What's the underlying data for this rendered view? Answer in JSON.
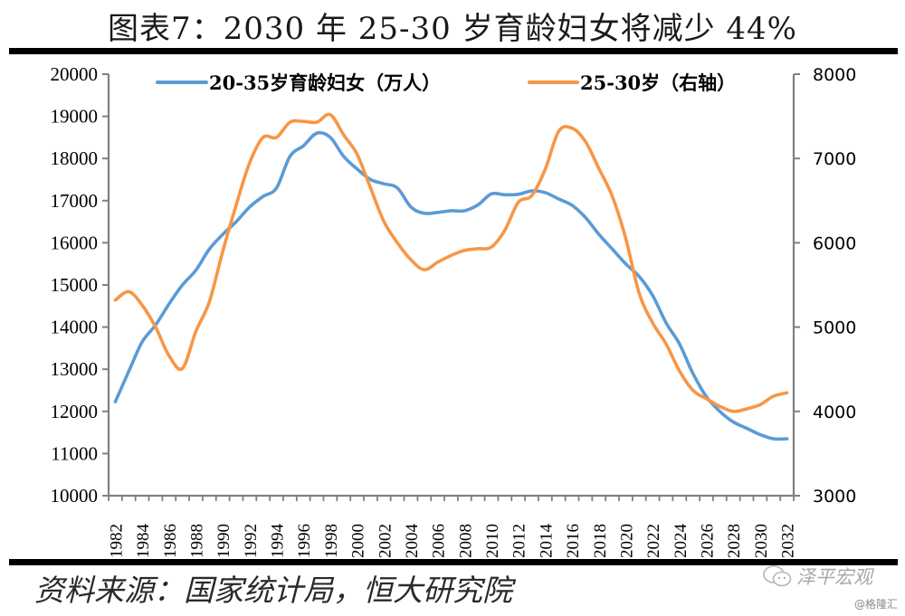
{
  "title": "图表7：2030 年 25-30 岁育龄妇女将减少 44%",
  "source": "资料来源：国家统计局，恒大研究院",
  "watermark": {
    "brand": "泽平宏观",
    "credit": "@格隆汇",
    "icon": "wechat-icon"
  },
  "colors": {
    "series1": "#5b9bd5",
    "series2": "#f79646",
    "axis": "#808080",
    "text": "#000000"
  },
  "chart_data": {
    "type": "line",
    "title": "图表7：2030 年 25-30 岁育龄妇女将减少 44%",
    "xlabel": "",
    "ylabel": "",
    "y2label": "",
    "ylim": [
      10000,
      20000
    ],
    "y2lim": [
      3000,
      8000
    ],
    "yticks": [
      "10000",
      "11000",
      "12000",
      "13000",
      "14000",
      "15000",
      "16000",
      "17000",
      "18000",
      "19000",
      "20000"
    ],
    "y2ticks": [
      "3000",
      "4000",
      "5000",
      "6000",
      "7000",
      "8000"
    ],
    "grid": false,
    "legend": "top",
    "x": [
      1982,
      1983,
      1984,
      1985,
      1986,
      1987,
      1988,
      1989,
      1990,
      1991,
      1992,
      1993,
      1994,
      1995,
      1996,
      1997,
      1998,
      1999,
      2000,
      2001,
      2002,
      2003,
      2004,
      2005,
      2006,
      2007,
      2008,
      2009,
      2010,
      2011,
      2012,
      2013,
      2014,
      2015,
      2016,
      2017,
      2018,
      2019,
      2020,
      2021,
      2022,
      2023,
      2024,
      2025,
      2026,
      2027,
      2028,
      2029,
      2030,
      2031,
      2032
    ],
    "xticklabels": [
      "1982",
      "1984",
      "1986",
      "1988",
      "1990",
      "1992",
      "1994",
      "1996",
      "1998",
      "2000",
      "2002",
      "2004",
      "2006",
      "2008",
      "2010",
      "2012",
      "2014",
      "2016",
      "2018",
      "2020",
      "2022",
      "2024",
      "2026",
      "2028",
      "2030",
      "2032"
    ],
    "series": [
      {
        "name": "20-35岁育龄妇女（万人）",
        "axis": "left",
        "values": [
          12230,
          12950,
          13650,
          14050,
          14550,
          15000,
          15350,
          15850,
          16200,
          16500,
          16850,
          17100,
          17300,
          18050,
          18300,
          18600,
          18500,
          18050,
          17750,
          17500,
          17400,
          17300,
          16850,
          16700,
          16720,
          16760,
          16760,
          16900,
          17160,
          17140,
          17150,
          17230,
          17190,
          17040,
          16890,
          16600,
          16200,
          15850,
          15500,
          15200,
          14750,
          14100,
          13600,
          12900,
          12350,
          12000,
          11750,
          11600,
          11450,
          11350,
          11350
        ]
      },
      {
        "name": "25-30岁（右轴）",
        "axis": "right",
        "values": [
          5320,
          5420,
          5260,
          5000,
          4660,
          4510,
          4950,
          5300,
          5900,
          6450,
          6950,
          7250,
          7250,
          7430,
          7440,
          7430,
          7520,
          7280,
          7050,
          6650,
          6250,
          6000,
          5800,
          5680,
          5770,
          5850,
          5910,
          5930,
          5950,
          6150,
          6480,
          6560,
          6870,
          7320,
          7360,
          7200,
          6880,
          6550,
          6050,
          5400,
          5050,
          4800,
          4480,
          4250,
          4150,
          4060,
          4000,
          4030,
          4080,
          4180,
          4220
        ]
      }
    ]
  }
}
